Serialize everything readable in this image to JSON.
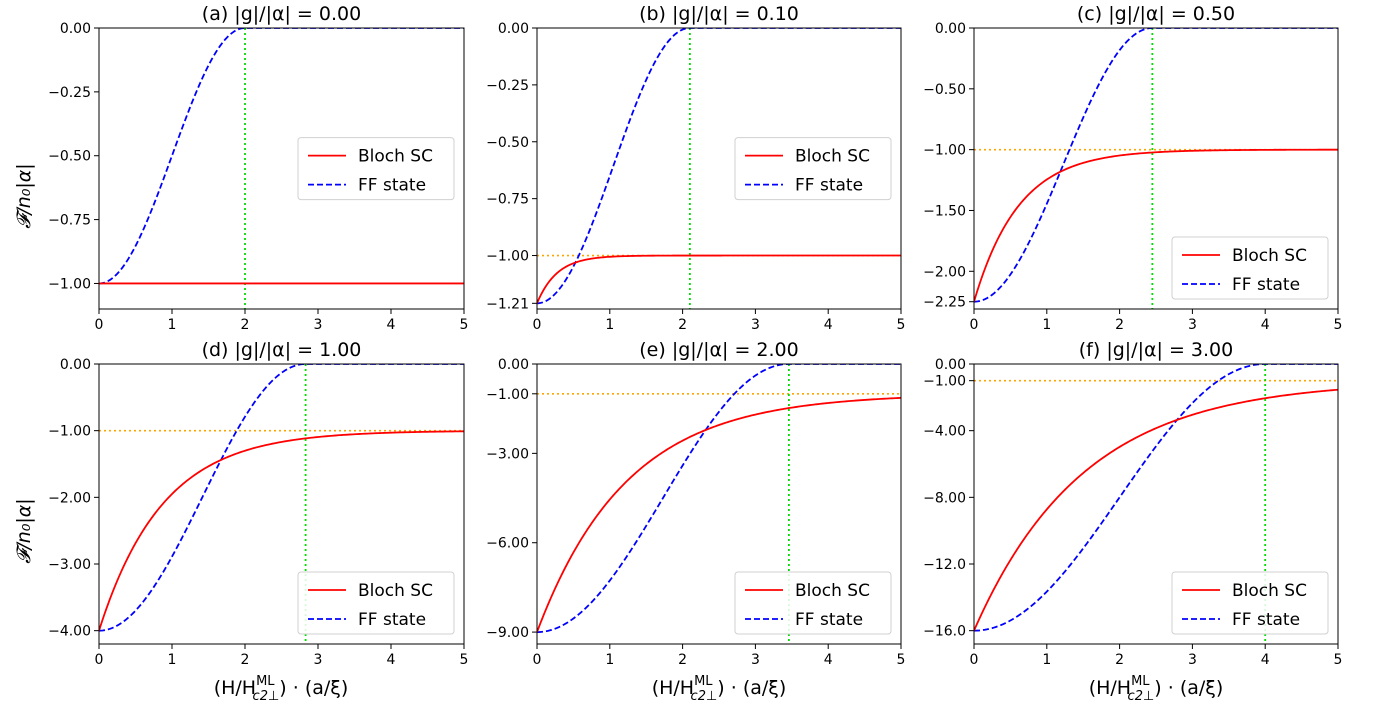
{
  "figure": {
    "ylabel": "𝓕/n₀|α|",
    "xlabel": "(H/H",
    "xlabel_sup": "ML",
    "xlabel_sub": "c2⊥",
    "xlabel_tail": ") · (a/ξ)"
  },
  "chart_data": [
    {
      "type": "line",
      "title": "(a) |g|/|α| = 0.00",
      "g": 0.0,
      "xlim": [
        0,
        5
      ],
      "ylim": [
        -1.1,
        0.0
      ],
      "yticks": [
        0.0,
        -0.25,
        -0.5,
        -0.75,
        -1.0
      ],
      "yticklabels": [
        "0.00",
        "−0.25",
        "−0.50",
        "−0.75",
        "−1.00"
      ],
      "xticks": [
        0,
        1,
        2,
        3,
        4,
        5
      ],
      "xticklabels": [
        "0",
        "1",
        "2",
        "3",
        "4",
        "5"
      ],
      "min_value": -1.0,
      "crossover_x": 2.0,
      "show_ref_line": false,
      "legend": "center-right",
      "series": [
        {
          "name": "Bloch SC",
          "color": "#ff0000",
          "style": "solid"
        },
        {
          "name": "FF state",
          "color": "#0000ff",
          "style": "dashed"
        }
      ],
      "ref_color": "#ffa500",
      "vline_color": "#00dd00"
    },
    {
      "type": "line",
      "title": "(b) |g|/|α| = 0.10",
      "g": 0.1,
      "xlim": [
        0,
        5
      ],
      "ylim": [
        -1.235,
        0.0
      ],
      "yticks": [
        0.0,
        -0.25,
        -0.5,
        -0.75,
        -1.0,
        -1.21
      ],
      "yticklabels": [
        "0.00",
        "−0.25",
        "−0.50",
        "−0.75",
        "−1.00",
        "−1.21"
      ],
      "xticks": [
        0,
        1,
        2,
        3,
        4,
        5
      ],
      "xticklabels": [
        "0",
        "1",
        "2",
        "3",
        "4",
        "5"
      ],
      "min_value": -1.21,
      "crossover_x": 2.1,
      "show_ref_line": true,
      "legend": "center-right",
      "series": [
        {
          "name": "Bloch SC",
          "color": "#ff0000",
          "style": "solid"
        },
        {
          "name": "FF state",
          "color": "#0000ff",
          "style": "dashed"
        }
      ],
      "ref_color": "#ffa500",
      "vline_color": "#00dd00"
    },
    {
      "type": "line",
      "title": "(c) |g|/|α| = 0.50",
      "g": 0.5,
      "xlim": [
        0,
        5
      ],
      "ylim": [
        -2.31,
        0.0
      ],
      "yticks": [
        0.0,
        -0.5,
        -1.0,
        -1.5,
        -2.0,
        -2.25
      ],
      "yticklabels": [
        "0.00",
        "−0.50",
        "−1.00",
        "−1.50",
        "−2.00",
        "−2.25"
      ],
      "xticks": [
        0,
        1,
        2,
        3,
        4,
        5
      ],
      "xticklabels": [
        "0",
        "1",
        "2",
        "3",
        "4",
        "5"
      ],
      "min_value": -2.25,
      "crossover_x": 2.45,
      "show_ref_line": true,
      "legend": "lower-right",
      "series": [
        {
          "name": "Bloch SC",
          "color": "#ff0000",
          "style": "solid"
        },
        {
          "name": "FF state",
          "color": "#0000ff",
          "style": "dashed"
        }
      ],
      "ref_color": "#ffa500",
      "vline_color": "#00dd00"
    },
    {
      "type": "line",
      "title": "(d) |g|/|α| = 1.00",
      "g": 1.0,
      "xlim": [
        0,
        5
      ],
      "ylim": [
        -4.2,
        0.0
      ],
      "yticks": [
        0.0,
        -1.0,
        -2.0,
        -3.0,
        -4.0
      ],
      "yticklabels": [
        "0.00",
        "−1.00",
        "−2.00",
        "−3.00",
        "−4.00"
      ],
      "xticks": [
        0,
        1,
        2,
        3,
        4,
        5
      ],
      "xticklabels": [
        "0",
        "1",
        "2",
        "3",
        "4",
        "5"
      ],
      "min_value": -4.0,
      "crossover_x": 2.83,
      "show_ref_line": true,
      "legend": "lower-right",
      "series": [
        {
          "name": "Bloch SC",
          "color": "#ff0000",
          "style": "solid"
        },
        {
          "name": "FF state",
          "color": "#0000ff",
          "style": "dashed"
        }
      ],
      "ref_color": "#ffa500",
      "vline_color": "#00dd00"
    },
    {
      "type": "line",
      "title": "(e) |g|/|α| = 2.00",
      "g": 2.0,
      "xlim": [
        0,
        5
      ],
      "ylim": [
        -9.4,
        0.0
      ],
      "yticks": [
        0.0,
        -1.0,
        -3.0,
        -6.0,
        -9.0
      ],
      "yticklabels": [
        "0.00",
        "−1.00",
        "−3.00",
        "−6.00",
        "−9.00"
      ],
      "xticks": [
        0,
        1,
        2,
        3,
        4,
        5
      ],
      "xticklabels": [
        "0",
        "1",
        "2",
        "3",
        "4",
        "5"
      ],
      "min_value": -9.0,
      "crossover_x": 3.46,
      "show_ref_line": true,
      "legend": "lower-right",
      "series": [
        {
          "name": "Bloch SC",
          "color": "#ff0000",
          "style": "solid"
        },
        {
          "name": "FF state",
          "color": "#0000ff",
          "style": "dashed"
        }
      ],
      "ref_color": "#ffa500",
      "vline_color": "#00dd00"
    },
    {
      "type": "line",
      "title": "(f) |g|/|α| = 3.00",
      "g": 3.0,
      "xlim": [
        0,
        5
      ],
      "ylim": [
        -16.8,
        0.0
      ],
      "yticks": [
        0.0,
        -1.0,
        -4.0,
        -8.0,
        -12.0,
        -16.0
      ],
      "yticklabels": [
        "0.00",
        "−1.00",
        "−4.00",
        "−8.00",
        "−12.0",
        "−16.0"
      ],
      "xticks": [
        0,
        1,
        2,
        3,
        4,
        5
      ],
      "xticklabels": [
        "0",
        "1",
        "2",
        "3",
        "4",
        "5"
      ],
      "min_value": -16.0,
      "crossover_x": 4.0,
      "show_ref_line": true,
      "legend": "lower-right",
      "series": [
        {
          "name": "Bloch SC",
          "color": "#ff0000",
          "style": "solid"
        },
        {
          "name": "FF state",
          "color": "#0000ff",
          "style": "dashed"
        }
      ],
      "ref_color": "#ffa500",
      "vline_color": "#00dd00"
    }
  ]
}
